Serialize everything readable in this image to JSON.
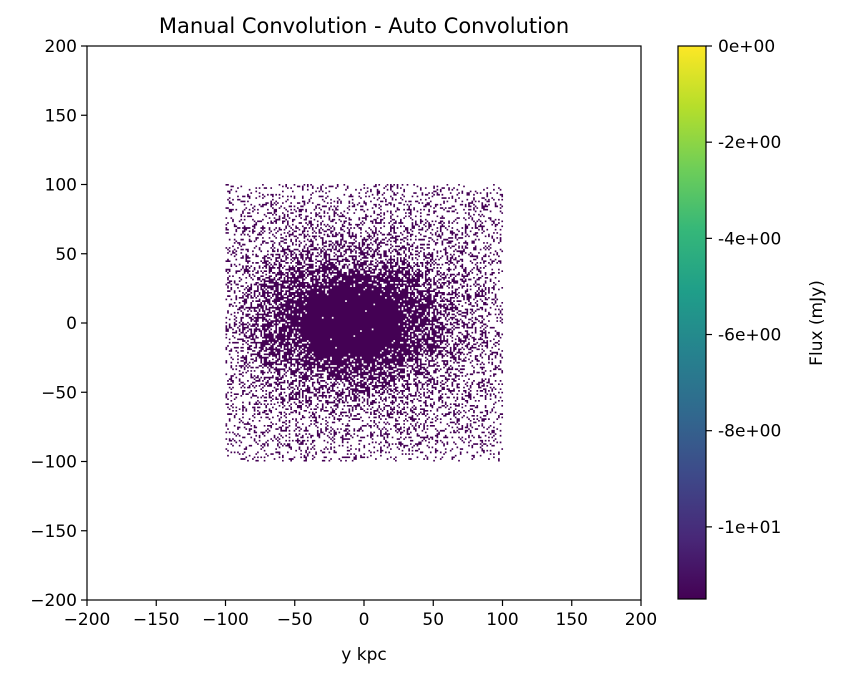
{
  "chart_data": {
    "type": "heatmap",
    "title": "Manual Convolution - Auto Convolution",
    "xlabel": "y kpc",
    "ylabel": "",
    "xlim": [
      -200,
      200
    ],
    "ylim": [
      -200,
      200
    ],
    "x_ticks": [
      -200,
      -150,
      -100,
      -50,
      0,
      50,
      100,
      150,
      200
    ],
    "y_ticks": [
      -200,
      -150,
      -100,
      -50,
      0,
      50,
      100,
      150,
      200
    ],
    "x_tick_labels": [
      "−200",
      "−150",
      "−100",
      "−50",
      "0",
      "50",
      "100",
      "150",
      "200"
    ],
    "y_tick_labels": [
      "−200",
      "−150",
      "−100",
      "−50",
      "0",
      "50",
      "100",
      "150",
      "200"
    ],
    "data_extent": {
      "x": [
        -100,
        100
      ],
      "y": [
        -100,
        100
      ]
    },
    "structure": "speckled square of pixels at the colormap minimum, densest in an elliptical core near the center, sparse toward the edges",
    "core_center": [
      -10,
      0
    ],
    "grid": false,
    "colormap": "viridis",
    "pixel_color": "#440154",
    "colorbar": {
      "label": "Flux (mJy)",
      "range": [
        -11.5,
        0
      ],
      "ticks": [
        0,
        -2,
        -4,
        -6,
        -8,
        -10
      ],
      "tick_labels": [
        "0e+00",
        "-2e+00",
        "-4e+00",
        "-6e+00",
        "-8e+00",
        "-1e+01"
      ],
      "colors": [
        "#440154",
        "#482878",
        "#3e4989",
        "#31688e",
        "#26828e",
        "#1f9e89",
        "#35b779",
        "#6ece58",
        "#b5de2b",
        "#fde725"
      ]
    }
  }
}
